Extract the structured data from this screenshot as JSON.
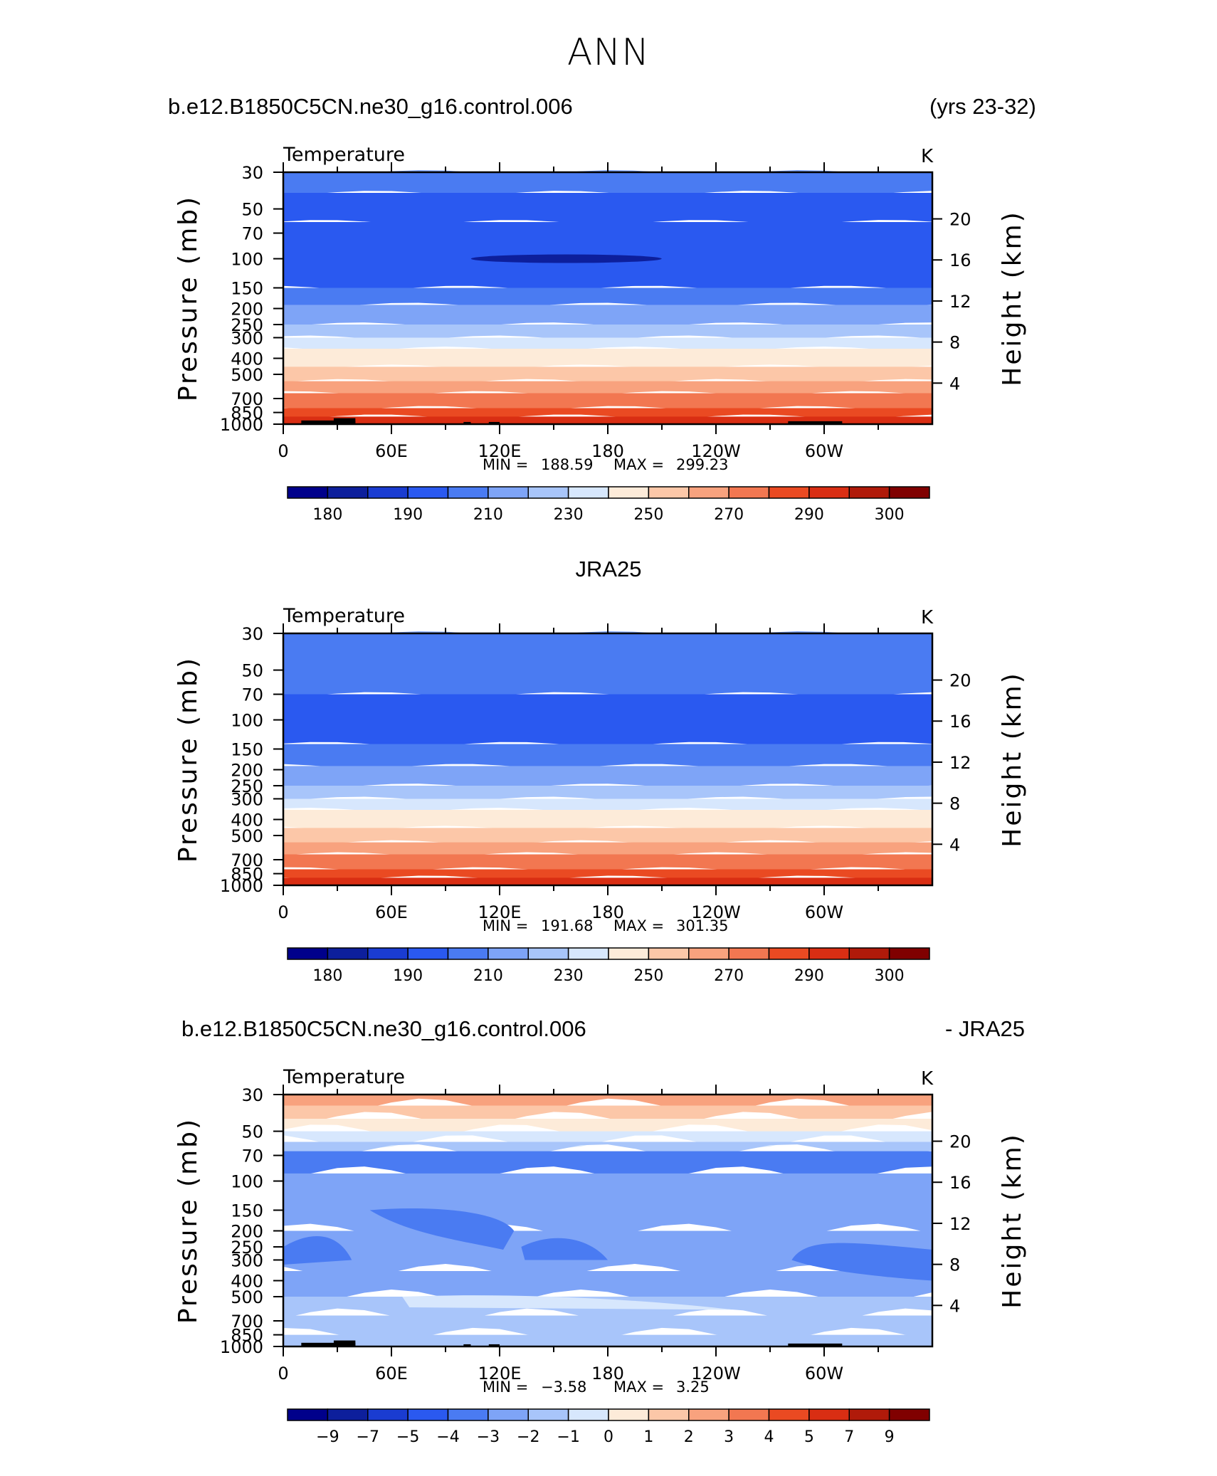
{
  "main_title": "ANN",
  "colors": {
    "temp_levels": [
      "#00008b",
      "#0d1f9c",
      "#1a3cd1",
      "#2a59f0",
      "#4a7bf2",
      "#7ea4f7",
      "#a8c5fa",
      "#d7e7fd",
      "#fdebd9",
      "#fcc7a8",
      "#f8a27e",
      "#f27751",
      "#ea4a22",
      "#d92e13",
      "#b01a0a",
      "#800000"
    ],
    "diff_levels": [
      "#00008b",
      "#0d1f9c",
      "#1a3cd1",
      "#2a59f0",
      "#4a7bf2",
      "#7ea4f7",
      "#a8c5fa",
      "#d7e7fd",
      "#fdebd9",
      "#fcc7a8",
      "#f8a27e",
      "#f27751",
      "#ea4a22",
      "#d92e13",
      "#b01a0a",
      "#800000"
    ]
  },
  "chart_data": [
    {
      "type": "contour",
      "header_left": "b.e12.B1850C5CN.ne30_g16.control.006",
      "header_right": "(yrs 23-32)",
      "plot_title": "Temperature",
      "units": "K",
      "xlabel": "",
      "ylabel": "Pressure (mb)",
      "ylabel_right": "Height (km)",
      "x_ticks": [
        "0",
        "60E",
        "120E",
        "180",
        "120W",
        "60W"
      ],
      "y_ticks": [
        "30",
        "50",
        "70",
        "100",
        "150",
        "200",
        "250",
        "300",
        "400",
        "500",
        "700",
        "850",
        "1000"
      ],
      "y_ticks_right": [
        "20",
        "16",
        "12",
        "8",
        "4"
      ],
      "min_label": "MIN =",
      "min_value": "188.59",
      "max_label": "MAX =",
      "max_value": "299.23",
      "colorbar_labels": [
        "180",
        "190",
        "210",
        "230",
        "250",
        "270",
        "290",
        "300"
      ],
      "band_levels": [
        5,
        4,
        3,
        3,
        4,
        5,
        6,
        7,
        8,
        9,
        10,
        11,
        12,
        13
      ],
      "pressure_bands": [
        30,
        40,
        60,
        150,
        190,
        250,
        300,
        350,
        450,
        550,
        650,
        800,
        900,
        1000
      ]
    },
    {
      "type": "contour",
      "header_left": "JRA25",
      "header_right": "",
      "plot_title": "Temperature",
      "units": "K",
      "xlabel": "",
      "ylabel": "Pressure (mb)",
      "ylabel_right": "Height (km)",
      "x_ticks": [
        "0",
        "60E",
        "120E",
        "180",
        "120W",
        "60W"
      ],
      "y_ticks": [
        "30",
        "50",
        "70",
        "100",
        "150",
        "200",
        "250",
        "300",
        "400",
        "500",
        "700",
        "850",
        "1000"
      ],
      "y_ticks_right": [
        "20",
        "16",
        "12",
        "8",
        "4"
      ],
      "min_label": "MIN =",
      "min_value": "191.68",
      "max_label": "MAX =",
      "max_value": "301.35",
      "colorbar_labels": [
        "180",
        "190",
        "210",
        "230",
        "250",
        "270",
        "290",
        "300"
      ],
      "band_levels": [
        5,
        4,
        3,
        4,
        5,
        6,
        7,
        8,
        9,
        10,
        11,
        12,
        13
      ],
      "pressure_bands": [
        30,
        70,
        140,
        190,
        250,
        300,
        350,
        450,
        550,
        650,
        800,
        900,
        1000
      ]
    },
    {
      "type": "contour",
      "header_left": "b.e12.B1850C5CN.ne30_g16.control.006",
      "header_right": "- JRA25",
      "plot_title": "Temperature",
      "units": "K",
      "xlabel": "",
      "ylabel": "Pressure (mb)",
      "ylabel_right": "Height (km)",
      "x_ticks": [
        "0",
        "60E",
        "120E",
        "180",
        "120W",
        "60W"
      ],
      "y_ticks": [
        "30",
        "50",
        "70",
        "100",
        "150",
        "200",
        "250",
        "300",
        "400",
        "500",
        "700",
        "850",
        "1000"
      ],
      "y_ticks_right": [
        "20",
        "16",
        "12",
        "8",
        "4"
      ],
      "min_label": "MIN =",
      "min_value": "−3.58",
      "max_label": "MAX =",
      "max_value": "3.25",
      "colorbar_labels": [
        "−9",
        "−7",
        "−5",
        "−4",
        "−3",
        "−2",
        "−1",
        "0",
        "1",
        "2",
        "3",
        "4",
        "5",
        "7",
        "9"
      ],
      "band_levels": [
        10,
        9,
        8,
        7,
        6,
        4,
        5,
        5,
        5,
        6,
        6,
        6
      ],
      "pressure_bands": [
        35,
        42,
        50,
        58,
        66,
        90,
        200,
        350,
        500,
        650,
        850,
        1000
      ]
    }
  ]
}
